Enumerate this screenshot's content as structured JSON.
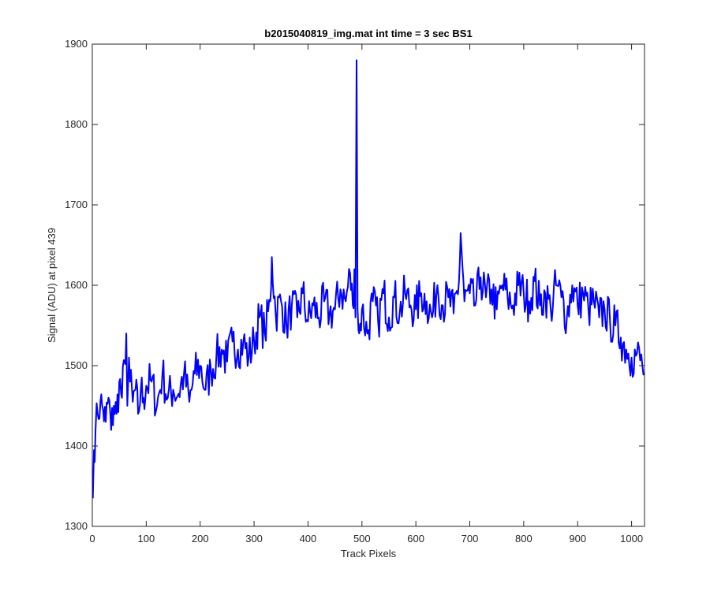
{
  "chart_data": {
    "type": "line",
    "title": "b2015040819_img.mat int time = 3 sec   BS1",
    "xlabel": "Track Pixels",
    "ylabel": "Signal (ADU) at pixel 439",
    "xlim": [
      0,
      1024
    ],
    "ylim": [
      1300,
      1900
    ],
    "xticks": [
      0,
      100,
      200,
      300,
      400,
      500,
      600,
      700,
      800,
      900,
      1000
    ],
    "yticks": [
      1300,
      1400,
      1500,
      1600,
      1700,
      1800,
      1900
    ],
    "xtick_labels": [
      "0",
      "100",
      "200",
      "300",
      "400",
      "500",
      "600",
      "700",
      "800",
      "900",
      "1000"
    ],
    "ytick_labels": [
      "1300",
      "1400",
      "1500",
      "1600",
      "1700",
      "1800",
      "1900"
    ],
    "grid": false,
    "line_color": "#0000ff",
    "series": [
      {
        "x": [
          1,
          3,
          6,
          10,
          15,
          20,
          25,
          30,
          35,
          40,
          45,
          50,
          55,
          60,
          63,
          65,
          68,
          70,
          75,
          80,
          85,
          90,
          95,
          100,
          110,
          120,
          130,
          140,
          150,
          160,
          170,
          180,
          190,
          200,
          210,
          220,
          230,
          240,
          250,
          260,
          270,
          280,
          290,
          300,
          310,
          320,
          330,
          333,
          340,
          350,
          360,
          370,
          380,
          390,
          400,
          410,
          420,
          430,
          440,
          450,
          460,
          470,
          478,
          483,
          486,
          488,
          490,
          492,
          495,
          500,
          510,
          520,
          530,
          540,
          550,
          560,
          570,
          580,
          590,
          600,
          610,
          620,
          630,
          640,
          650,
          660,
          670,
          680,
          683,
          690,
          700,
          710,
          720,
          730,
          740,
          750,
          760,
          770,
          780,
          790,
          800,
          810,
          820,
          830,
          840,
          850,
          860,
          870,
          880,
          890,
          900,
          910,
          920,
          930,
          940,
          950,
          960,
          970,
          980,
          990,
          1000,
          1010,
          1020,
          1024
        ],
        "y": [
          1335,
          1395,
          1420,
          1440,
          1455,
          1445,
          1430,
          1460,
          1420,
          1450,
          1440,
          1480,
          1460,
          1505,
          1540,
          1450,
          1510,
          1480,
          1455,
          1470,
          1440,
          1470,
          1460,
          1475,
          1480,
          1450,
          1490,
          1460,
          1470,
          1465,
          1490,
          1455,
          1490,
          1500,
          1470,
          1495,
          1510,
          1520,
          1505,
          1530,
          1520,
          1530,
          1510,
          1530,
          1560,
          1540,
          1580,
          1635,
          1565,
          1580,
          1550,
          1575,
          1560,
          1590,
          1555,
          1575,
          1560,
          1580,
          1565,
          1570,
          1595,
          1580,
          1615,
          1575,
          1620,
          1560,
          1880,
          1570,
          1540,
          1570,
          1540,
          1580,
          1555,
          1590,
          1560,
          1585,
          1565,
          1590,
          1575,
          1570,
          1590,
          1580,
          1560,
          1600,
          1575,
          1585,
          1565,
          1605,
          1665,
          1580,
          1590,
          1575,
          1610,
          1585,
          1595,
          1570,
          1600,
          1585,
          1575,
          1600,
          1590,
          1580,
          1605,
          1575,
          1590,
          1570,
          1600,
          1585,
          1560,
          1600,
          1575,
          1590,
          1570,
          1580,
          1560,
          1570,
          1555,
          1550,
          1535,
          1520,
          1510,
          1515,
          1500,
          1490
        ]
      }
    ]
  }
}
